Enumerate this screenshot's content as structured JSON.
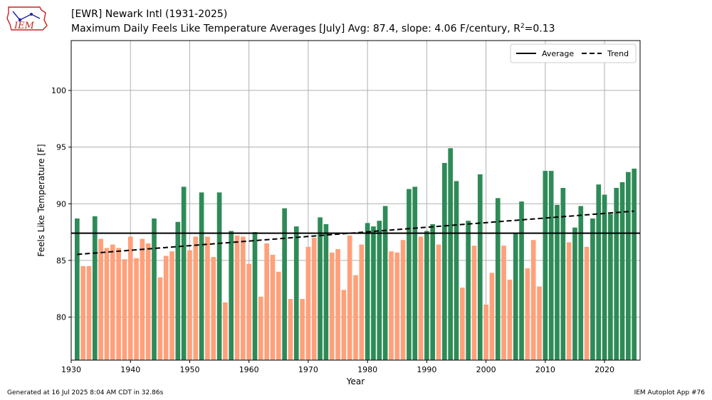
{
  "header": {
    "title_line1": "[EWR] Newark Intl (1931-2025)",
    "title_line2_pre": "Maximum Daily Feels Like Temperature Averages [July]  Avg: 87.4, slope: 4.06 F/century, R",
    "title_line2_sup": "2",
    "title_line2_post": "=0.13",
    "logo_text": "IEM"
  },
  "footer": {
    "generated": "Generated at 16 Jul 2025 8:04 AM CDT in 32.86s",
    "app": "IEM Autoplot App #76"
  },
  "colors": {
    "above": "#2e8b57",
    "below": "#ffa07a",
    "average_line": "#000000",
    "trend_line": "#000000",
    "logo": "#cc2222"
  },
  "chart_data": {
    "type": "bar",
    "xlabel": "Year",
    "ylabel": "Feels Like Temperature [F]",
    "xlim": [
      1930,
      2026
    ],
    "ylim": [
      76.2,
      104.4
    ],
    "xticks": [
      1930,
      1940,
      1950,
      1960,
      1970,
      1980,
      1990,
      2000,
      2010,
      2020
    ],
    "yticks": [
      80,
      85,
      90,
      95,
      100
    ],
    "grid": true,
    "legend": {
      "position": "top-right",
      "entries": [
        {
          "label": "Average",
          "style": "solid"
        },
        {
          "label": "Trend",
          "style": "dashed"
        }
      ]
    },
    "average": 87.4,
    "trend": {
      "x": [
        1931,
        2025
      ],
      "y": [
        85.53,
        89.35
      ]
    },
    "x": [
      1931,
      1932,
      1933,
      1934,
      1935,
      1936,
      1937,
      1938,
      1939,
      1940,
      1941,
      1942,
      1943,
      1944,
      1945,
      1946,
      1947,
      1948,
      1949,
      1950,
      1951,
      1952,
      1953,
      1954,
      1955,
      1956,
      1957,
      1958,
      1959,
      1960,
      1961,
      1962,
      1963,
      1964,
      1965,
      1966,
      1967,
      1968,
      1969,
      1970,
      1971,
      1972,
      1973,
      1974,
      1975,
      1976,
      1977,
      1978,
      1979,
      1980,
      1981,
      1982,
      1983,
      1984,
      1985,
      1986,
      1987,
      1988,
      1989,
      1990,
      1991,
      1992,
      1993,
      1994,
      1995,
      1996,
      1997,
      1998,
      1999,
      2000,
      2001,
      2002,
      2003,
      2004,
      2005,
      2006,
      2007,
      2008,
      2009,
      2010,
      2011,
      2012,
      2013,
      2014,
      2015,
      2016,
      2017,
      2018,
      2019,
      2020,
      2021,
      2022,
      2023,
      2024,
      2025
    ],
    "values": [
      88.7,
      84.5,
      84.5,
      88.9,
      86.9,
      86.1,
      86.4,
      86.1,
      85.1,
      87.1,
      85.2,
      86.9,
      86.5,
      88.7,
      83.5,
      85.4,
      85.8,
      88.4,
      91.5,
      85.9,
      87.1,
      91.0,
      87.1,
      85.3,
      91.0,
      81.3,
      87.6,
      87.2,
      87.1,
      84.7,
      87.5,
      81.8,
      86.5,
      85.5,
      84.0,
      89.6,
      81.6,
      88.0,
      81.6,
      86.2,
      87.0,
      88.8,
      88.2,
      85.7,
      86.0,
      82.4,
      87.2,
      83.7,
      86.4,
      88.3,
      88.0,
      88.5,
      89.8,
      85.8,
      85.7,
      86.8,
      91.3,
      91.5,
      87.1,
      87.6,
      88.2,
      86.4,
      93.6,
      94.9,
      92.0,
      82.6,
      88.5,
      86.3,
      92.6,
      81.1,
      83.9,
      90.5,
      86.3,
      83.3,
      87.4,
      90.2,
      84.3,
      86.8,
      82.7,
      92.9,
      92.9,
      89.9,
      91.4,
      86.6,
      87.9,
      89.8,
      86.2,
      88.7,
      91.7,
      90.8,
      89.1,
      91.4,
      91.9,
      92.8,
      93.1
    ]
  }
}
